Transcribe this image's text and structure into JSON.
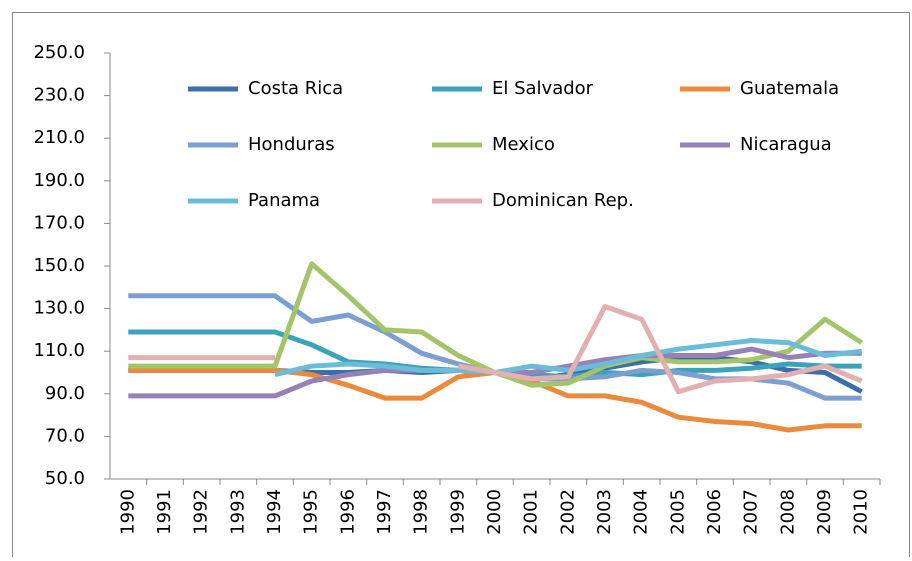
{
  "chart_data": {
    "type": "line",
    "categories": [
      "1990",
      "1991",
      "1992",
      "1993",
      "1994",
      "1995",
      "1996",
      "1997",
      "1998",
      "1999",
      "2000",
      "2001",
      "2002",
      "2003",
      "2004",
      "2005",
      "2006",
      "2007",
      "2008",
      "2009",
      "2010"
    ],
    "series": [
      {
        "name": "Costa Rica",
        "color": "#3d6ea9",
        "values": [
          101,
          101,
          101,
          101,
          101,
          100,
          100,
          101,
          100,
          101,
          100,
          97,
          99,
          102,
          105,
          107,
          107,
          105,
          101,
          100,
          91
        ]
      },
      {
        "name": "El Salvador",
        "color": "#3ba3b9",
        "values": [
          119,
          119,
          119,
          119,
          119,
          113,
          105,
          104,
          102,
          101,
          100,
          99,
          98,
          100,
          99,
          101,
          101,
          102,
          104,
          103,
          103
        ]
      },
      {
        "name": "Guatemala",
        "color": "#eb8a3c",
        "values": [
          101,
          101,
          101,
          101,
          101,
          99,
          94,
          88,
          88,
          98,
          100,
          96,
          89,
          89,
          86,
          79,
          77,
          76,
          73,
          75,
          75
        ]
      },
      {
        "name": "Honduras",
        "color": "#7b9fd0",
        "values": [
          136,
          136,
          136,
          136,
          136,
          124,
          127,
          119,
          109,
          104,
          100,
          97,
          97,
          98,
          101,
          100,
          97,
          97,
          95,
          88,
          88
        ]
      },
      {
        "name": "Mexico",
        "color": "#a4c46a",
        "values": [
          103,
          103,
          103,
          103,
          103,
          151,
          136,
          120,
          119,
          108,
          100,
          94,
          95,
          103,
          107,
          105,
          105,
          106,
          110,
          125,
          114
        ]
      },
      {
        "name": "Nicaragua",
        "color": "#9682b6",
        "values": [
          89,
          89,
          89,
          89,
          89,
          96,
          99,
          101,
          101,
          101,
          100,
          100,
          103,
          106,
          108,
          108,
          108,
          111,
          107,
          109,
          109
        ]
      },
      {
        "name": "Panama",
        "color": "#6bbcd8",
        "values": [
          null,
          null,
          null,
          null,
          99,
          103,
          104,
          103,
          101,
          101,
          100,
          103,
          101,
          104,
          108,
          111,
          113,
          115,
          114,
          108,
          110
        ]
      },
      {
        "name": "Dominican Rep.",
        "color": "#e2b0b0",
        "values": [
          107,
          107,
          107,
          107,
          107,
          null,
          null,
          null,
          null,
          103,
          100,
          97,
          98,
          131,
          125,
          91,
          96,
          97,
          99,
          103,
          96
        ]
      }
    ],
    "ylim": [
      50,
      250
    ],
    "yticks": [
      {
        "value": 50,
        "label": "50.0"
      },
      {
        "value": 70,
        "label": "70.0"
      },
      {
        "value": 90,
        "label": "90.0"
      },
      {
        "value": 110,
        "label": "110.0"
      },
      {
        "value": 130,
        "label": "130.0"
      },
      {
        "value": 150,
        "label": "150.0"
      },
      {
        "value": 170,
        "label": "170.0"
      },
      {
        "value": 190,
        "label": "190.0"
      },
      {
        "value": 210,
        "label": "210.0"
      },
      {
        "value": 230,
        "label": "230.0"
      },
      {
        "value": 250,
        "label": "250.0"
      }
    ]
  }
}
